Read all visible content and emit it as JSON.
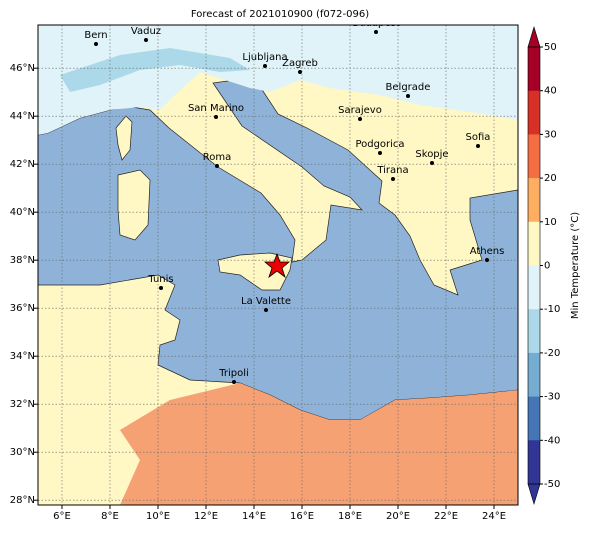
{
  "title": "Forecast of 2021010900 (f072-096)",
  "xticks": [
    {
      "value": 6,
      "label": "6°E"
    },
    {
      "value": 8,
      "label": "8°E"
    },
    {
      "value": 10,
      "label": "10°E"
    },
    {
      "value": 12,
      "label": "12°E"
    },
    {
      "value": 14,
      "label": "14°E"
    },
    {
      "value": 16,
      "label": "16°E"
    },
    {
      "value": 18,
      "label": "18°E"
    },
    {
      "value": 20,
      "label": "20°E"
    },
    {
      "value": 22,
      "label": "22°E"
    },
    {
      "value": 24,
      "label": "24°E"
    }
  ],
  "yticks": [
    {
      "value": 28,
      "label": "28°N"
    },
    {
      "value": 30,
      "label": "30°N"
    },
    {
      "value": 32,
      "label": "32°N"
    },
    {
      "value": 34,
      "label": "34°N"
    },
    {
      "value": 36,
      "label": "36°N"
    },
    {
      "value": 38,
      "label": "38°N"
    },
    {
      "value": 40,
      "label": "40°N"
    },
    {
      "value": 42,
      "label": "42°N"
    },
    {
      "value": 44,
      "label": "44°N"
    },
    {
      "value": 46,
      "label": "46°N"
    }
  ],
  "cities": [
    "Bern",
    "Vaduz",
    "Budapest",
    "Ljubljana",
    "Zagreb",
    "San Marino",
    "Belgrade",
    "Sarajevo",
    "Roma",
    "Podgorica",
    "Skopje",
    "Sofia",
    "Tirana",
    "Athens",
    "Tunis",
    "La Valette",
    "Tripoli"
  ],
  "colorbar": {
    "label": "Min Temperature (°C)",
    "ticks": [
      50,
      40,
      30,
      20,
      10,
      0,
      -10,
      -20,
      -30,
      -40,
      -50
    ],
    "colors": [
      "#a50026",
      "#d73027",
      "#f46d43",
      "#fdae61",
      "#fff7c4",
      "#e0f3f8",
      "#abd9e9",
      "#74add1",
      "#4575b4",
      "#313695"
    ]
  }
}
